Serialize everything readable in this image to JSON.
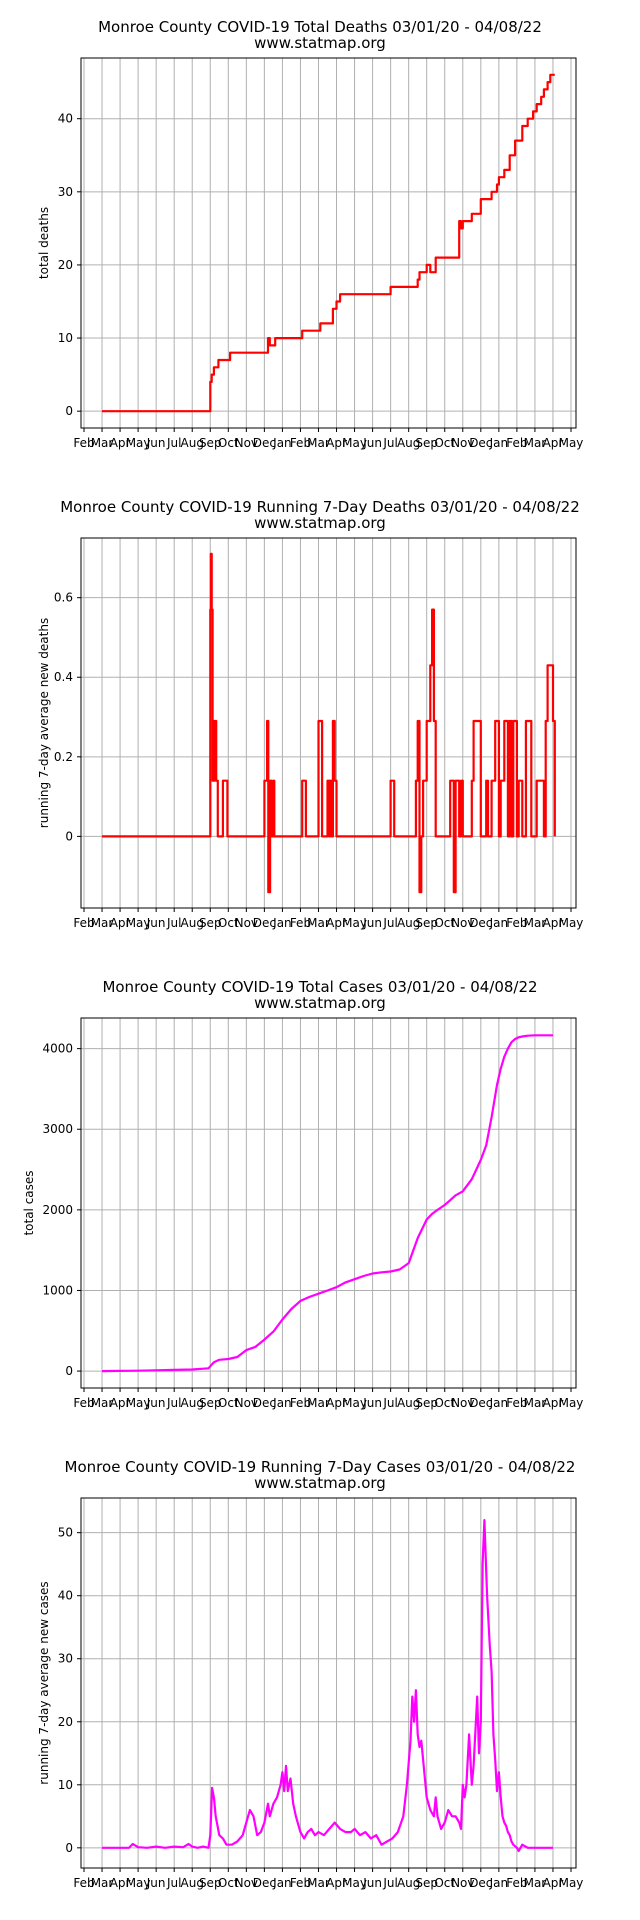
{
  "chart_data": [
    {
      "type": "line",
      "title": "Monroe County COVID-19 Total Deaths 03/01/20 - 04/08/22",
      "subtitle": "www.statmap.org",
      "xlabel": "",
      "ylabel": "total deaths",
      "x_tick_labels": [
        "Feb",
        "Mar",
        "Apr",
        "May",
        "Jun",
        "Jul",
        "Aug",
        "Sep",
        "Oct",
        "Nov",
        "Dec",
        "Jan",
        "Feb",
        "Mar",
        "Apr",
        "May",
        "Jun",
        "Jul",
        "Aug",
        "Sep",
        "Oct",
        "Nov",
        "Dec",
        "Jan",
        "Feb",
        "Mar",
        "Apr",
        "May"
      ],
      "y_ticks": [
        0,
        10,
        20,
        30,
        40
      ],
      "ylim": [
        -2.3,
        48.3
      ],
      "grid": true,
      "series": [
        {
          "color": "#ff0000",
          "step": true,
          "x": [
            1.0,
            6.9,
            7.0,
            7.08,
            7.2,
            7.45,
            8.1,
            10.1,
            10.2,
            10.3,
            10.6,
            12.1,
            13.1,
            13.8,
            14.0,
            14.2,
            17.0,
            18.5,
            18.6,
            19.0,
            19.2,
            19.5,
            20.8,
            20.9,
            21.0,
            21.5,
            22.0,
            22.6,
            22.9,
            23.0,
            23.3,
            23.6,
            23.9,
            24.3,
            24.6,
            24.9,
            25.1,
            25.35,
            25.5,
            25.7,
            25.85,
            26.0,
            26.1
          ],
          "values": [
            0,
            0,
            4,
            5,
            6,
            7,
            8,
            8,
            10,
            9,
            10,
            11,
            12,
            14,
            15,
            16,
            17,
            18,
            19,
            20,
            19,
            21,
            26,
            25,
            26,
            27,
            29,
            30,
            31,
            32,
            33,
            35,
            37,
            39,
            40,
            41,
            42,
            43,
            44,
            45,
            46,
            46,
            46
          ]
        }
      ]
    },
    {
      "type": "line",
      "title": "Monroe County COVID-19 Running 7-Day Deaths 03/01/20 - 04/08/22",
      "subtitle": "www.statmap.org",
      "xlabel": "",
      "ylabel": "running 7-day average new deaths",
      "x_tick_labels": [
        "Feb",
        "Mar",
        "Apr",
        "May",
        "Jun",
        "Jul",
        "Aug",
        "Sep",
        "Oct",
        "Nov",
        "Dec",
        "Jan",
        "Feb",
        "Mar",
        "Apr",
        "May",
        "Jun",
        "Jul",
        "Aug",
        "Sep",
        "Oct",
        "Nov",
        "Dec",
        "Jan",
        "Feb",
        "Mar",
        "Apr",
        "May"
      ],
      "y_ticks": [
        0.0,
        0.2,
        0.4,
        0.6
      ],
      "ylim": [
        -0.18,
        0.75
      ],
      "grid": true,
      "series": [
        {
          "color": "#ff0000",
          "step": true,
          "x": [
            1.0,
            6.95,
            7.0,
            7.03,
            7.08,
            7.13,
            7.23,
            7.33,
            7.42,
            7.7,
            7.95,
            8.1,
            10.0,
            10.15,
            10.22,
            10.32,
            10.4,
            10.5,
            10.55,
            10.7,
            10.9,
            11.0,
            12.1,
            12.3,
            12.4,
            13.0,
            13.2,
            13.4,
            13.5,
            13.6,
            13.65,
            13.75,
            13.8,
            13.9,
            14.0,
            14.08,
            14.2,
            17.0,
            17.2,
            18.4,
            18.5,
            18.6,
            18.7,
            18.8,
            19.0,
            19.2,
            19.3,
            19.4,
            19.5,
            19.7,
            20.3,
            20.5,
            20.6,
            20.8,
            20.9,
            21.0,
            21.3,
            21.5,
            21.6,
            22.0,
            22.3,
            22.4,
            22.6,
            22.8,
            23.0,
            23.1,
            23.3,
            23.5,
            23.6,
            23.7,
            23.8,
            24.0,
            24.1,
            24.3,
            24.5,
            24.8,
            25.1,
            25.5,
            25.6,
            25.7,
            26.0,
            26.1
          ],
          "values": [
            0,
            0,
            0.57,
            0.71,
            0.57,
            0.14,
            0.29,
            0.14,
            0,
            0.14,
            0,
            0,
            0.14,
            0.29,
            -0.14,
            0.14,
            0,
            0.14,
            0,
            0,
            0,
            0,
            0.14,
            0,
            0,
            0.29,
            0,
            0,
            0.14,
            0,
            0.14,
            0,
            0.29,
            0.14,
            0,
            0,
            0,
            0.14,
            0,
            0.14,
            0.29,
            -0.14,
            0,
            0.14,
            0.29,
            0.43,
            0.57,
            0.29,
            0,
            0,
            0.14,
            -0.14,
            0.14,
            0,
            0.14,
            0,
            0,
            0.14,
            0.29,
            0,
            0.14,
            0,
            0.14,
            0.29,
            0,
            0.14,
            0.29,
            0,
            0.29,
            0,
            0.29,
            0,
            0.14,
            0,
            0.29,
            0,
            0.14,
            0,
            0.29,
            0.43,
            0.29,
            0
          ],
          "values_note": ""
        }
      ]
    },
    {
      "type": "line",
      "title": "Monroe County COVID-19 Total Cases 03/01/20 - 04/08/22",
      "subtitle": "www.statmap.org",
      "xlabel": "",
      "ylabel": "total cases",
      "x_tick_labels": [
        "Feb",
        "Mar",
        "Apr",
        "May",
        "Jun",
        "Jul",
        "Aug",
        "Sep",
        "Oct",
        "Nov",
        "Dec",
        "Jan",
        "Feb",
        "Mar",
        "Apr",
        "May",
        "Jun",
        "Jul",
        "Aug",
        "Sep",
        "Oct",
        "Nov",
        "Dec",
        "Jan",
        "Feb",
        "Mar",
        "Apr",
        "May"
      ],
      "y_ticks": [
        0,
        1000,
        2000,
        3000,
        4000
      ],
      "ylim": [
        -210,
        4380
      ],
      "grid": true,
      "series": [
        {
          "color": "#ff00ff",
          "step": false,
          "x": [
            1.0,
            2.0,
            3.0,
            4.0,
            5.0,
            6.0,
            6.9,
            7.2,
            7.5,
            8.0,
            8.5,
            9.0,
            9.5,
            10.0,
            10.5,
            11.0,
            11.5,
            12.0,
            12.5,
            13.0,
            13.5,
            14.0,
            14.5,
            15.0,
            15.5,
            16.0,
            16.5,
            17.0,
            17.5,
            18.0,
            18.5,
            19.0,
            19.3,
            19.6,
            20.0,
            20.3,
            20.6,
            21.0,
            21.5,
            22.0,
            22.3,
            22.6,
            22.9,
            23.1,
            23.3,
            23.5,
            23.7,
            23.9,
            24.1,
            24.3,
            24.6,
            25.0,
            25.5,
            26.0
          ],
          "values": [
            0,
            2,
            5,
            9,
            14,
            20,
            35,
            110,
            140,
            150,
            175,
            260,
            300,
            390,
            490,
            640,
            770,
            870,
            920,
            960,
            1000,
            1040,
            1100,
            1140,
            1180,
            1210,
            1225,
            1235,
            1260,
            1340,
            1650,
            1880,
            1950,
            2000,
            2060,
            2120,
            2180,
            2230,
            2380,
            2620,
            2800,
            3150,
            3550,
            3750,
            3900,
            4000,
            4080,
            4120,
            4140,
            4150,
            4160,
            4165,
            4165,
            4165
          ]
        }
      ]
    },
    {
      "type": "line",
      "title": "Monroe County COVID-19 Running 7-Day Cases 03/01/20 - 04/08/22",
      "subtitle": "www.statmap.org",
      "xlabel": "",
      "ylabel": "running 7-day average new cases",
      "x_tick_labels": [
        "Feb",
        "Mar",
        "Apr",
        "May",
        "Jun",
        "Jul",
        "Aug",
        "Sep",
        "Oct",
        "Nov",
        "Dec",
        "Jan",
        "Feb",
        "Mar",
        "Apr",
        "May",
        "Jun",
        "Jul",
        "Aug",
        "Sep",
        "Oct",
        "Nov",
        "Dec",
        "Jan",
        "Feb",
        "Mar",
        "Apr",
        "May"
      ],
      "y_ticks": [
        0,
        10,
        20,
        30,
        40,
        50
      ],
      "ylim": [
        -3.2,
        55.5
      ],
      "grid": true,
      "series": [
        {
          "color": "#ff00ff",
          "step": false,
          "x": [
            1.0,
            2.0,
            2.5,
            2.7,
            3.0,
            3.5,
            4.0,
            4.5,
            5.0,
            5.5,
            5.8,
            6.0,
            6.3,
            6.6,
            6.9,
            7.0,
            7.1,
            7.2,
            7.3,
            7.5,
            7.7,
            7.9,
            8.2,
            8.5,
            8.8,
            9.0,
            9.2,
            9.4,
            9.6,
            9.8,
            10.0,
            10.2,
            10.3,
            10.5,
            10.7,
            10.9,
            11.0,
            11.1,
            11.2,
            11.3,
            11.45,
            11.6,
            11.75,
            11.9,
            12.0,
            12.2,
            12.4,
            12.6,
            12.8,
            13.0,
            13.3,
            13.6,
            13.9,
            14.2,
            14.5,
            14.8,
            15.0,
            15.3,
            15.6,
            15.9,
            16.2,
            16.5,
            16.8,
            17.1,
            17.4,
            17.7,
            17.9,
            18.1,
            18.2,
            18.3,
            18.4,
            18.5,
            18.6,
            18.7,
            18.8,
            19.0,
            19.2,
            19.4,
            19.5,
            19.6,
            19.8,
            20.0,
            20.2,
            20.4,
            20.6,
            20.8,
            20.9,
            21.0,
            21.1,
            21.2,
            21.35,
            21.5,
            21.6,
            21.8,
            21.9,
            22.0,
            22.1,
            22.2,
            22.35,
            22.5,
            22.6,
            22.7,
            22.8,
            22.9,
            23.0,
            23.1,
            23.2,
            23.3,
            23.4,
            23.5,
            23.6,
            23.7,
            23.8,
            24.0,
            24.1,
            24.3,
            24.6,
            24.9,
            25.2,
            25.5,
            25.7,
            25.9,
            26.0
          ],
          "values": [
            0,
            0,
            0,
            0.6,
            0.1,
            0,
            0.2,
            0,
            0.2,
            0.1,
            0.6,
            0.2,
            0,
            0.2,
            0,
            2,
            9.5,
            8,
            5,
            2,
            1.5,
            0.5,
            0.5,
            1,
            2,
            4,
            6,
            5,
            2,
            2.5,
            4,
            7,
            5,
            7,
            8,
            10,
            12,
            9,
            13,
            9,
            11,
            7,
            5,
            3.5,
            2.5,
            1.5,
            2.5,
            3,
            2,
            2.5,
            2,
            3,
            4,
            3,
            2.5,
            2.5,
            3,
            2,
            2.5,
            1.5,
            2,
            0.5,
            1,
            1.5,
            2.5,
            5,
            10,
            17,
            24,
            20,
            25,
            18,
            16,
            17,
            14,
            8,
            6,
            5,
            8,
            5,
            3,
            4,
            6,
            5,
            5,
            4,
            3,
            10,
            8,
            10,
            18,
            10,
            13,
            24,
            15,
            20,
            45,
            52,
            40,
            32,
            28,
            18,
            14,
            9,
            12,
            8,
            5,
            4,
            3.5,
            2.5,
            2,
            1,
            0.5,
            0,
            -0.5,
            0.5,
            0,
            0,
            0,
            0,
            0,
            0,
            0
          ]
        }
      ]
    }
  ]
}
